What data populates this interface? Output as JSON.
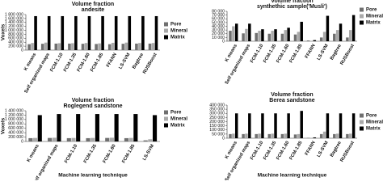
{
  "chart_data": [
    {
      "type": "bar",
      "title": "Volume fraction",
      "subtitle": "andesite",
      "y_label": "Voxels",
      "categories": [
        "K means",
        "Self organized maps",
        "FCM-1.10",
        "FCM-1.35",
        "FCM-1.60",
        "FCM-1.85",
        "FFANN",
        "LS-SVM",
        "Bagtree",
        "RUSBoost"
      ],
      "series": [
        {
          "name": "Pore",
          "color": "#6f6f6f",
          "values": [
            300000,
            320000,
            330000,
            330000,
            320000,
            310000,
            300000,
            320000,
            330000,
            330000
          ]
        },
        {
          "name": "Mineral",
          "color": "#a9a9a9",
          "values": [
            360000,
            380000,
            350000,
            350000,
            360000,
            340000,
            370000,
            380000,
            360000,
            360000
          ]
        },
        {
          "name": "Matrix",
          "color": "#000000",
          "values": [
            1720000,
            1720000,
            1720000,
            1720000,
            1720000,
            1720000,
            1720000,
            1720000,
            1720000,
            1720000
          ]
        }
      ],
      "ylim": [
        0,
        1800000
      ],
      "yticks": [
        0,
        {
          "value": 200000,
          "label": "200 000"
        },
        {
          "value": 400000,
          "label": "400 000"
        },
        {
          "value": 600000,
          "label": "600 000"
        },
        {
          "value": 800000,
          "label": "800 000"
        },
        {
          "value": 1000000,
          "label": "1 000 000"
        },
        {
          "value": 1200000,
          "label": "1 200 000"
        },
        {
          "value": 1400000,
          "label": "1 400 000"
        },
        {
          "value": 1600000,
          "label": "1 600 000"
        },
        {
          "value": 1800000,
          "label": "1 800 000"
        }
      ],
      "legend": "right"
    },
    {
      "type": "bar",
      "title": "Volume fraction",
      "subtitle": "synthethic sample('Musli')",
      "categories": [
        "K means",
        "Self organized maps",
        "FCM-1.10",
        "FCM-1.35",
        "FCM-1.60",
        "FCM-1.85",
        "FFANN",
        "LS-SVM",
        "Bagtree",
        "RUSBoost"
      ],
      "series": [
        {
          "name": "Pore",
          "color": "#6f6f6f",
          "values": [
            28000,
            21000,
            22000,
            20000,
            20000,
            18000,
            2000,
            10000,
            20000,
            10000
          ]
        },
        {
          "name": "Mineral",
          "color": "#a9a9a9",
          "values": [
            40000,
            33000,
            28000,
            28000,
            30000,
            25000,
            1000,
            25000,
            30000,
            30000
          ]
        },
        {
          "name": "Matrix",
          "color": "#000000",
          "values": [
            47000,
            47000,
            32000,
            32000,
            36000,
            52000,
            3000,
            68000,
            47000,
            70000
          ]
        }
      ],
      "ylim": [
        0,
        80000
      ],
      "yticks": [
        0,
        {
          "value": 10000,
          "label": "10 000"
        },
        {
          "value": 20000,
          "label": "20 000"
        },
        {
          "value": 30000,
          "label": "30 000"
        },
        {
          "value": 40000,
          "label": "40 000"
        },
        {
          "value": 50000,
          "label": "50 000"
        },
        {
          "value": 60000,
          "label": "60 000"
        },
        {
          "value": 70000,
          "label": "70 000"
        },
        {
          "value": 80000,
          "label": "80 000"
        }
      ],
      "legend": "right"
    },
    {
      "type": "bar",
      "title": "Volume fraction",
      "subtitle": "Roglegend sandstone",
      "y_label": "Voxels",
      "x_label": "Machine learning technique",
      "categories": [
        "K means",
        "Self organized maps",
        "FCM-1.10",
        "FCM-1.35",
        "FCM-1.60",
        "FCM-1.85",
        "LS-SVM"
      ],
      "series": [
        {
          "name": "Pore",
          "color": "#6f6f6f",
          "values": [
            150000,
            160000,
            150000,
            150000,
            160000,
            150000,
            50000
          ]
        },
        {
          "name": "Mineral",
          "color": "#a9a9a9",
          "values": [
            160000,
            170000,
            160000,
            160000,
            170000,
            160000,
            100000
          ]
        },
        {
          "name": "Matrix",
          "color": "#000000",
          "values": [
            1200000,
            1250000,
            1250000,
            1250000,
            1250000,
            1250000,
            1200000
          ]
        }
      ],
      "ylim": [
        0,
        1400000
      ],
      "yticks": [
        0,
        {
          "value": 200000,
          "label": "200 000"
        },
        {
          "value": 400000,
          "label": "400 000"
        },
        {
          "value": 600000,
          "label": "600 000"
        },
        {
          "value": 800000,
          "label": "800 000"
        },
        {
          "value": 1000000,
          "label": "1 000 000"
        },
        {
          "value": 1200000,
          "label": "1 200 000"
        },
        {
          "value": 1400000,
          "label": "1 400 000"
        }
      ],
      "legend": "right"
    },
    {
      "type": "bar",
      "title": "Volume fraction",
      "subtitle": "Berea sandstone",
      "x_label": "Machine learning technique",
      "categories": [
        "K means",
        "Self organized maps",
        "FCM-1.10",
        "FCM-1.35",
        "FCM-1.60",
        "FCM-1.85",
        "FFANN",
        "LS-SVM",
        "Bagtree",
        "RUSBoost"
      ],
      "series": [
        {
          "name": "Pore",
          "color": "#6f6f6f",
          "values": [
            50000,
            50000,
            50000,
            50000,
            50000,
            45000,
            5000,
            50000,
            50000,
            50000
          ]
        },
        {
          "name": "Mineral",
          "color": "#a9a9a9",
          "values": [
            55000,
            55000,
            55000,
            55000,
            55000,
            50000,
            5000,
            80000,
            55000,
            55000
          ]
        },
        {
          "name": "Matrix",
          "color": "#000000",
          "values": [
            300000,
            300000,
            300000,
            300000,
            300000,
            330000,
            10000,
            300000,
            300000,
            300000
          ]
        }
      ],
      "ylim": [
        0,
        400000
      ],
      "yticks": [
        0,
        {
          "value": 50000,
          "label": "50 000"
        },
        {
          "value": 100000,
          "label": "100 000"
        },
        {
          "value": 150000,
          "label": "150 000"
        },
        {
          "value": 200000,
          "label": "200 000"
        },
        {
          "value": 250000,
          "label": "250 000"
        },
        {
          "value": 300000,
          "label": "300 000"
        },
        {
          "value": 350000,
          "label": "350 000"
        },
        {
          "value": 400000,
          "label": "400 000"
        }
      ],
      "legend": "right"
    }
  ]
}
